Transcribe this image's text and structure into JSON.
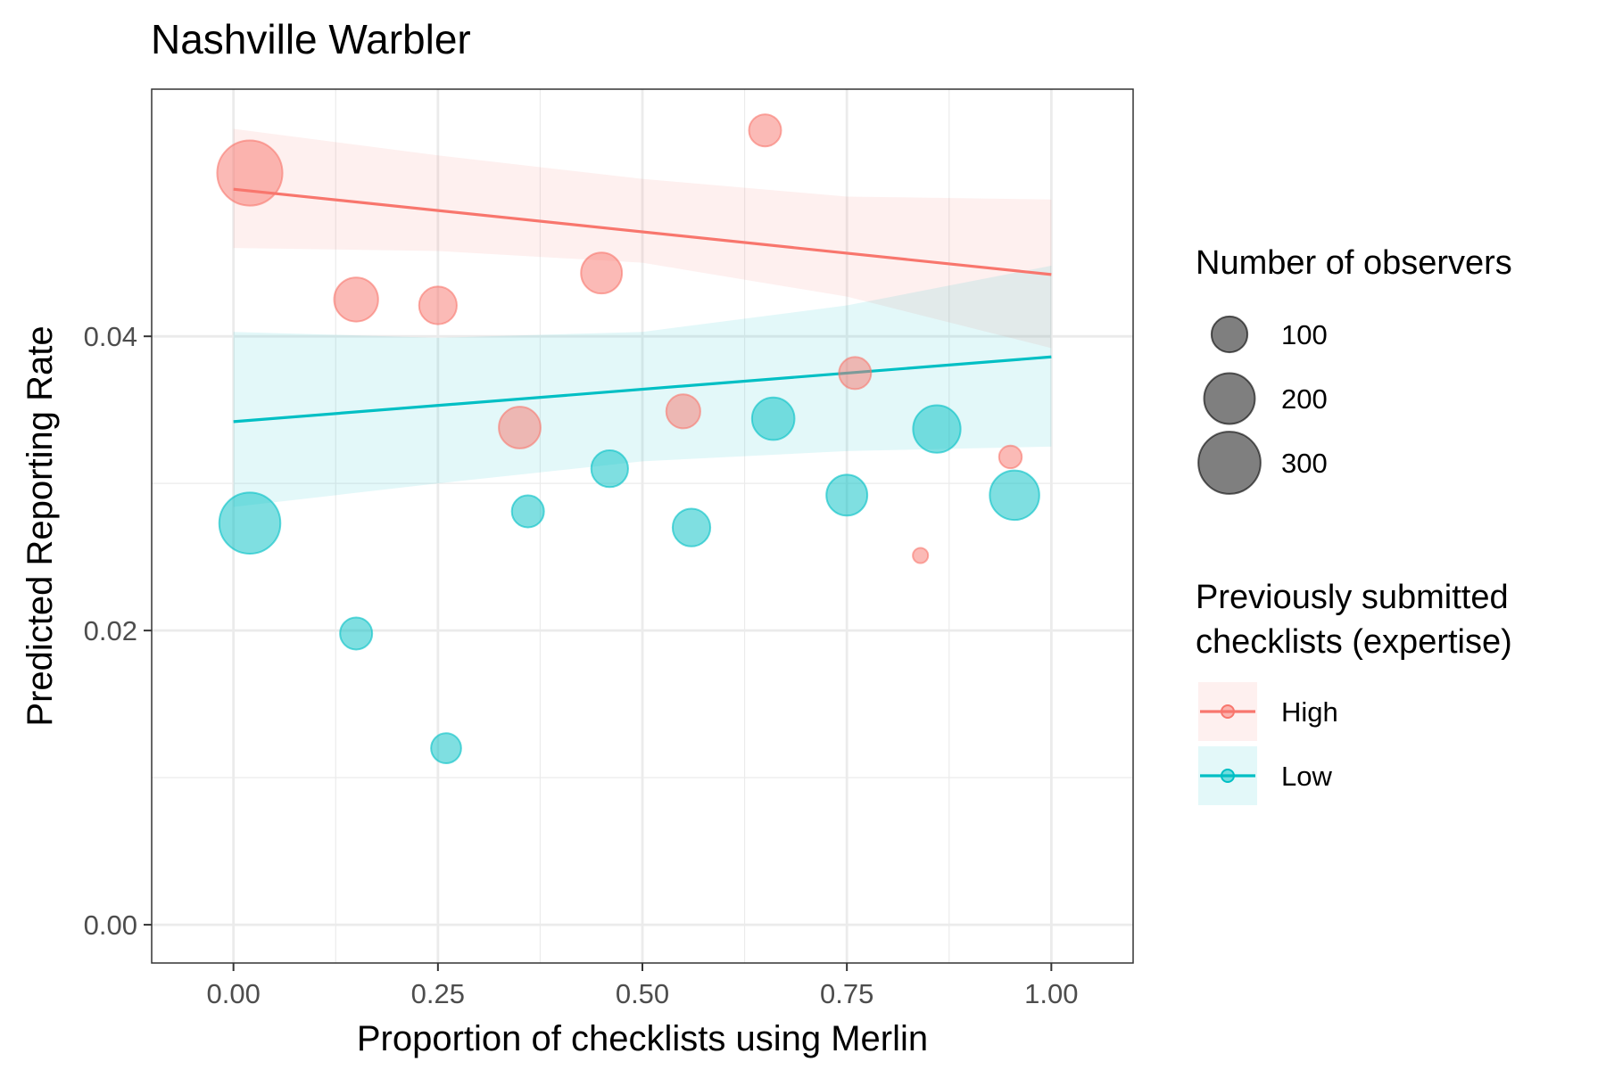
{
  "chart_data": {
    "type": "scatter",
    "title": "Nashville Warbler",
    "xlabel": "Proportion of checklists using Merlin",
    "ylabel": "Predicted Reporting Rate",
    "xlim": [
      -0.1,
      1.1
    ],
    "ylim": [
      -0.0026,
      0.0568
    ],
    "x_ticks": [
      0,
      0.25,
      0.5,
      0.75,
      1
    ],
    "x_tick_labels": [
      "0.00",
      "0.25",
      "0.50",
      "0.75",
      "1.00"
    ],
    "y_ticks": [
      0,
      0.02,
      0.04
    ],
    "y_tick_labels": [
      "0.00",
      "0.02",
      "0.04"
    ],
    "grid": true,
    "legend_position": "right",
    "size_legend": {
      "title": "Number of observers",
      "entries": [
        {
          "label": "100",
          "value": 100
        },
        {
          "label": "200",
          "value": 200
        },
        {
          "label": "300",
          "value": 300
        }
      ]
    },
    "color_legend": {
      "title_lines": [
        "Previously submitted",
        "checklists (expertise)"
      ]
    },
    "series": [
      {
        "name": "High",
        "color": "#F8766D",
        "points": [
          {
            "x": 0.02,
            "y": 0.0511,
            "n": 330
          },
          {
            "x": 0.15,
            "y": 0.0425,
            "n": 150
          },
          {
            "x": 0.25,
            "y": 0.0421,
            "n": 110
          },
          {
            "x": 0.35,
            "y": 0.0338,
            "n": 135
          },
          {
            "x": 0.45,
            "y": 0.0443,
            "n": 130
          },
          {
            "x": 0.55,
            "y": 0.0349,
            "n": 90
          },
          {
            "x": 0.65,
            "y": 0.054,
            "n": 80
          },
          {
            "x": 0.76,
            "y": 0.0375,
            "n": 80
          },
          {
            "x": 0.84,
            "y": 0.0251,
            "n": 18
          },
          {
            "x": 0.95,
            "y": 0.0318,
            "n": 40
          }
        ],
        "fit": {
          "x": [
            0,
            1
          ],
          "y": [
            0.05,
            0.0442
          ]
        },
        "ci": {
          "x": [
            0,
            0.25,
            0.5,
            0.75,
            1
          ],
          "lower": [
            0.046,
            0.0458,
            0.045,
            0.0427,
            0.0392
          ],
          "upper": [
            0.0541,
            0.0523,
            0.0507,
            0.0495,
            0.0493
          ]
        }
      },
      {
        "name": "Low",
        "color": "#00BFC4",
        "points": [
          {
            "x": 0.02,
            "y": 0.0273,
            "n": 290
          },
          {
            "x": 0.15,
            "y": 0.0198,
            "n": 80
          },
          {
            "x": 0.26,
            "y": 0.012,
            "n": 70
          },
          {
            "x": 0.36,
            "y": 0.0281,
            "n": 80
          },
          {
            "x": 0.46,
            "y": 0.031,
            "n": 105
          },
          {
            "x": 0.56,
            "y": 0.027,
            "n": 110
          },
          {
            "x": 0.66,
            "y": 0.0344,
            "n": 140
          },
          {
            "x": 0.75,
            "y": 0.0292,
            "n": 130
          },
          {
            "x": 0.86,
            "y": 0.0337,
            "n": 175
          },
          {
            "x": 0.955,
            "y": 0.0292,
            "n": 190
          }
        ],
        "fit": {
          "x": [
            0,
            1
          ],
          "y": [
            0.0342,
            0.0386
          ]
        },
        "ci": {
          "x": [
            0,
            0.25,
            0.5,
            0.75,
            1
          ],
          "lower": [
            0.0284,
            0.03,
            0.0315,
            0.0322,
            0.0325
          ],
          "upper": [
            0.0403,
            0.0399,
            0.0403,
            0.0421,
            0.0448
          ]
        }
      }
    ]
  }
}
